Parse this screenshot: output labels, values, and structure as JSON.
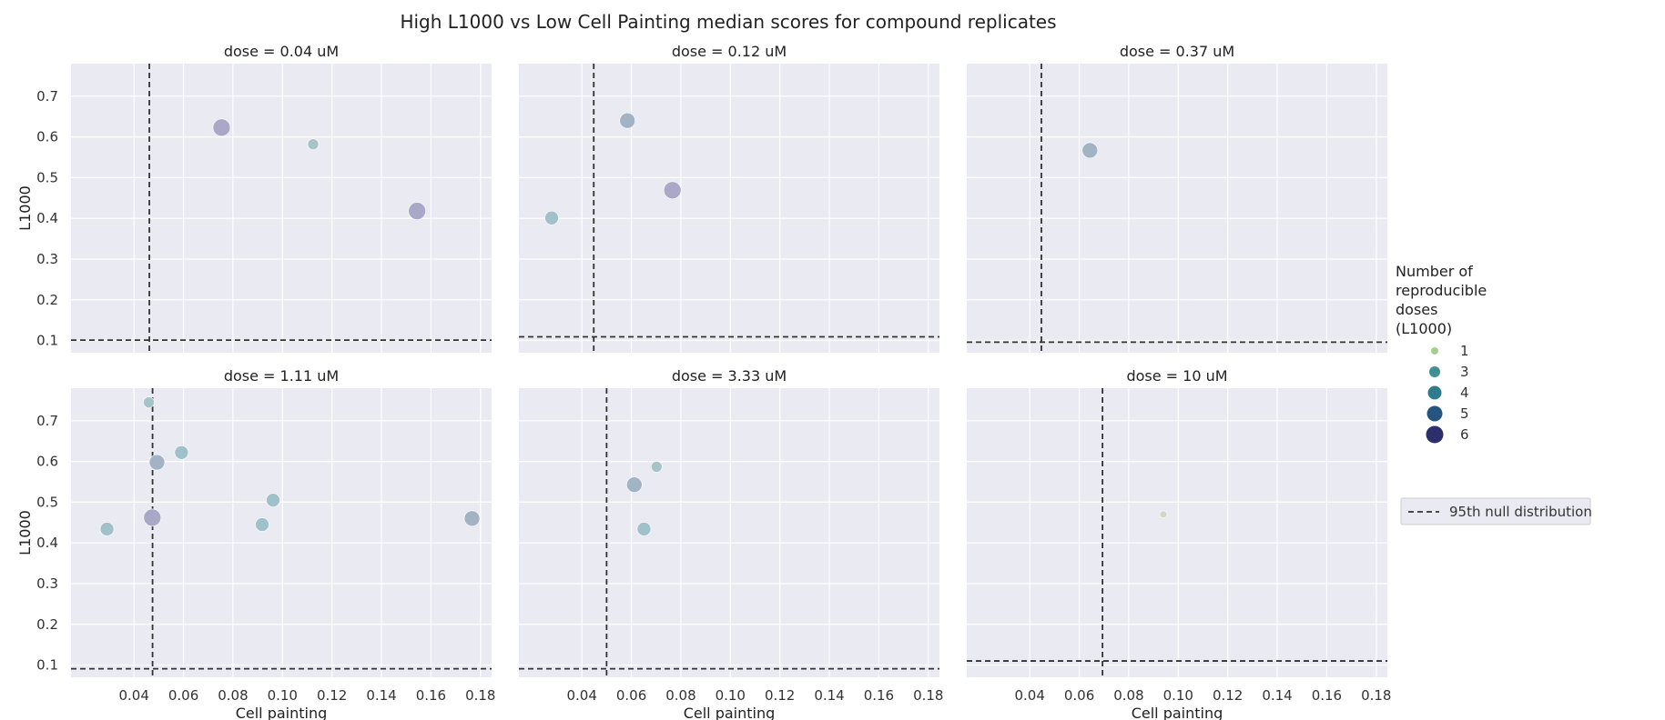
{
  "colors": {
    "panel_bg": "#eaeaf2",
    "grid": "#ffffff",
    "null_line": "#333333",
    "size_1": "#a5cf8c",
    "size_3": "#3f8f93",
    "size_4": "#2e7c8e",
    "size_5": "#25557f",
    "size_6": "#2c2f6b"
  },
  "chart_data": {
    "type": "scatter",
    "title": "High L1000 vs Low Cell Painting median scores for compound replicates",
    "xlabel": "Cell painting",
    "ylabel": "L1000",
    "xlim": [
      0.01455,
      0.1845
    ],
    "ylim": [
      0.07,
      0.78
    ],
    "x_ticks": [
      "0.04",
      "0.06",
      "0.08",
      "0.10",
      "0.12",
      "0.14",
      "0.16",
      "0.18"
    ],
    "y_ticks": [
      "0.1",
      "0.2",
      "0.3",
      "0.4",
      "0.5",
      "0.6",
      "0.7"
    ],
    "grid": true,
    "legend": {
      "title": [
        "Number of",
        "reproducible",
        "doses",
        "(L1000)"
      ],
      "placement": "right",
      "items": [
        {
          "label": "1",
          "size": 1,
          "color": "#a5cf8c"
        },
        {
          "label": "3",
          "size": 3,
          "color": "#3f8f93"
        },
        {
          "label": "4",
          "size": 4,
          "color": "#2e7c8e"
        },
        {
          "label": "5",
          "size": 5,
          "color": "#25557f"
        },
        {
          "label": "6",
          "size": 6,
          "color": "#2c2f6b"
        }
      ],
      "line_label": "95th null distribution"
    },
    "panels": [
      {
        "title": "dose = 0.04 uM",
        "null_x": 0.0462,
        "null_y": 0.101,
        "points": [
          {
            "x": 0.0754,
            "y": 0.623,
            "n": 6,
            "c": "#a9a8c7"
          },
          {
            "x": 0.1124,
            "y": 0.582,
            "n": 3,
            "c": "#a6c4c8"
          },
          {
            "x": 0.1544,
            "y": 0.418,
            "n": 6,
            "c": "#a9a8c7"
          }
        ]
      },
      {
        "title": "dose = 0.12 uM",
        "null_x": 0.0448,
        "null_y": 0.109,
        "points": [
          {
            "x": 0.0278,
            "y": 0.401,
            "n": 4,
            "c": "#a0c0ca"
          },
          {
            "x": 0.0584,
            "y": 0.64,
            "n": 5,
            "c": "#a2b3c4"
          },
          {
            "x": 0.0766,
            "y": 0.469,
            "n": 6,
            "c": "#a9a8c7"
          }
        ]
      },
      {
        "title": "dose = 0.37 uM",
        "null_x": 0.0447,
        "null_y": 0.096,
        "points": [
          {
            "x": 0.0643,
            "y": 0.567,
            "n": 5,
            "c": "#a2b3c4"
          }
        ]
      },
      {
        "title": "dose = 1.11 uM",
        "null_x": 0.0475,
        "null_y": 0.091,
        "points": [
          {
            "x": 0.0291,
            "y": 0.434,
            "n": 4,
            "c": "#a0c0ca"
          },
          {
            "x": 0.046,
            "y": 0.745,
            "n": 3,
            "c": "#a6c4c8"
          },
          {
            "x": 0.0493,
            "y": 0.598,
            "n": 5,
            "c": "#a2b3c4"
          },
          {
            "x": 0.0474,
            "y": 0.462,
            "n": 6,
            "c": "#a9a8c7"
          },
          {
            "x": 0.0592,
            "y": 0.622,
            "n": 4,
            "c": "#a0c0ca"
          },
          {
            "x": 0.0962,
            "y": 0.505,
            "n": 4,
            "c": "#a0c0ca"
          },
          {
            "x": 0.0918,
            "y": 0.445,
            "n": 4,
            "c": "#a0c0ca"
          },
          {
            "x": 0.1766,
            "y": 0.46,
            "n": 5,
            "c": "#a2b3c4"
          }
        ]
      },
      {
        "title": "dose = 3.33 uM",
        "null_x": 0.05,
        "null_y": 0.091,
        "points": [
          {
            "x": 0.0612,
            "y": 0.543,
            "n": 5,
            "c": "#a2b3c4"
          },
          {
            "x": 0.0702,
            "y": 0.587,
            "n": 3,
            "c": "#a6c4c8"
          },
          {
            "x": 0.0651,
            "y": 0.434,
            "n": 4,
            "c": "#a0c0ca"
          }
        ]
      },
      {
        "title": "dose = 10 uM",
        "null_x": 0.0694,
        "null_y": 0.11,
        "points": [
          {
            "x": 0.094,
            "y": 0.47,
            "n": 1,
            "c": "#cfd9c3"
          }
        ]
      }
    ]
  }
}
